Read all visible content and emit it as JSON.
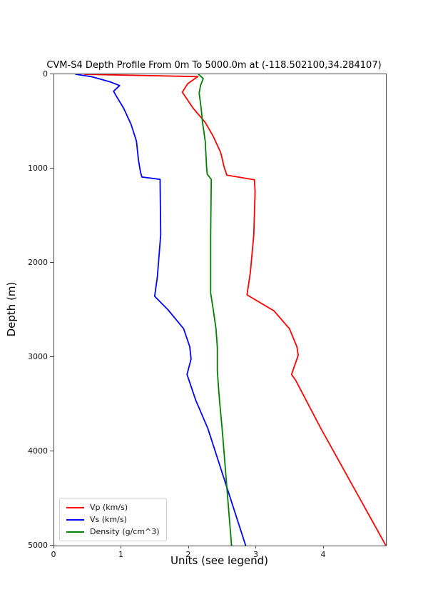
{
  "figure": {
    "background": "#ffffff"
  },
  "chart_data": {
    "type": "line",
    "title": "CVM-S4 Depth Profile From 0m To 5000.0m at (-118.502100,34.284107)",
    "xlabel": "Units (see legend)",
    "ylabel": "Depth (m)",
    "xlim": [
      0,
      4.92
    ],
    "ylim": [
      0,
      5000
    ],
    "y_axis_inverted": true,
    "grid": false,
    "xticks": [
      "0",
      "1",
      "2",
      "3",
      "4"
    ],
    "yticks": [
      "0",
      "1000",
      "2000",
      "3000",
      "4000",
      "5000"
    ],
    "legend": {
      "position": "lower-left",
      "entries": [
        "Vp (km/s)",
        "Vs (km/s)",
        "Density (g/cm^3)"
      ]
    },
    "axis_color": "#454545",
    "series": [
      {
        "name": "Vp (km/s)",
        "color": "#ff0000",
        "points_value_depth": [
          [
            0.45,
            0
          ],
          [
            2.13,
            25
          ],
          [
            1.98,
            100
          ],
          [
            1.9,
            190
          ],
          [
            2.06,
            360
          ],
          [
            2.24,
            510
          ],
          [
            2.36,
            660
          ],
          [
            2.47,
            830
          ],
          [
            2.52,
            985
          ],
          [
            2.56,
            1070
          ],
          [
            2.97,
            1120
          ],
          [
            2.98,
            1250
          ],
          [
            2.96,
            1700
          ],
          [
            2.91,
            2100
          ],
          [
            2.86,
            2340
          ],
          [
            3.26,
            2510
          ],
          [
            3.49,
            2700
          ],
          [
            3.6,
            2890
          ],
          [
            3.62,
            2980
          ],
          [
            3.52,
            3185
          ],
          [
            3.58,
            3245
          ],
          [
            3.95,
            3750
          ],
          [
            4.92,
            5000
          ]
        ]
      },
      {
        "name": "Vs (km/s)",
        "color": "#0000ff",
        "points_value_depth": [
          [
            0.32,
            0
          ],
          [
            0.55,
            25
          ],
          [
            0.83,
            80
          ],
          [
            0.97,
            120
          ],
          [
            0.88,
            180
          ],
          [
            0.92,
            230
          ],
          [
            1.03,
            360
          ],
          [
            1.14,
            530
          ],
          [
            1.22,
            710
          ],
          [
            1.25,
            910
          ],
          [
            1.28,
            1040
          ],
          [
            1.3,
            1090
          ],
          [
            1.57,
            1115
          ],
          [
            1.58,
            1700
          ],
          [
            1.53,
            2150
          ],
          [
            1.49,
            2355
          ],
          [
            1.69,
            2500
          ],
          [
            1.92,
            2700
          ],
          [
            2.01,
            2890
          ],
          [
            2.03,
            3020
          ],
          [
            1.97,
            3185
          ],
          [
            2.1,
            3460
          ],
          [
            2.28,
            3760
          ],
          [
            2.84,
            5000
          ]
        ]
      },
      {
        "name": "Density (g/cm^3)",
        "color": "#008000",
        "points_value_depth": [
          [
            2.14,
            0
          ],
          [
            2.21,
            45
          ],
          [
            2.17,
            120
          ],
          [
            2.15,
            200
          ],
          [
            2.18,
            360
          ],
          [
            2.2,
            510
          ],
          [
            2.24,
            710
          ],
          [
            2.26,
            985
          ],
          [
            2.27,
            1060
          ],
          [
            2.33,
            1115
          ],
          [
            2.32,
            1700
          ],
          [
            2.32,
            2320
          ],
          [
            2.36,
            2500
          ],
          [
            2.4,
            2700
          ],
          [
            2.42,
            2900
          ],
          [
            2.42,
            3150
          ],
          [
            2.45,
            3450
          ],
          [
            2.49,
            3750
          ],
          [
            2.63,
            5000
          ]
        ]
      }
    ]
  }
}
